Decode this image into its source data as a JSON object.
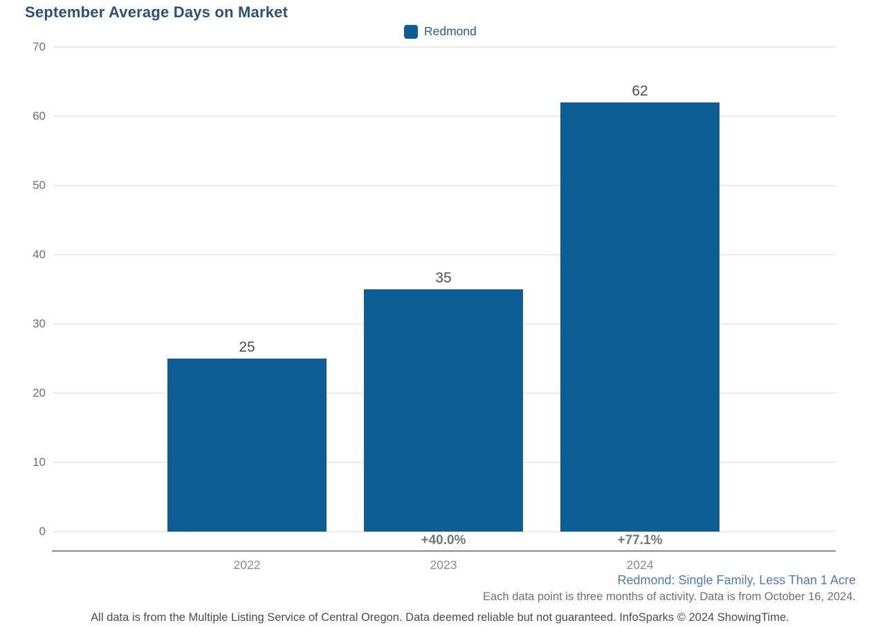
{
  "title": "September Average Days on Market",
  "legend": {
    "label": "Redmond",
    "swatch_color": "#0e5e96"
  },
  "chart_data": {
    "type": "bar",
    "title": "September Average Days on Market",
    "categories": [
      "2022",
      "2023",
      "2024"
    ],
    "series": [
      {
        "name": "Redmond",
        "values": [
          25,
          35,
          62
        ]
      }
    ],
    "value_labels": [
      "25",
      "35",
      "62"
    ],
    "pct_change_labels": [
      "",
      "+40.0%",
      "+77.1%"
    ],
    "ylim": [
      0,
      70
    ],
    "yticks": [
      0,
      10,
      20,
      30,
      40,
      50,
      60,
      70
    ],
    "xlabel": "",
    "ylabel": "",
    "grid": "horizontal",
    "legend_position": "top-center",
    "bar_color": "#0e5e96"
  },
  "footnotes": {
    "segment": "Redmond: Single Family, Less Than 1 Acre",
    "data_note": "Each data point is three months of activity. Data is from October 16, 2024.",
    "attribution": "All data is from the Multiple Listing Service of Central Oregon. Data deemed reliable but not guaranteed. InfoSparks © 2024 ShowingTime."
  },
  "colors": {
    "title_text": "#2b5174",
    "bar": "#0e5e96",
    "gridline": "#eaebec",
    "axis_line": "#87898c",
    "tick_text": "#6e6e6e",
    "category_text": "#8c8c8c",
    "value_text": "#4d4d4d",
    "pct_text": "#757575",
    "segment_text": "#5379ae"
  }
}
